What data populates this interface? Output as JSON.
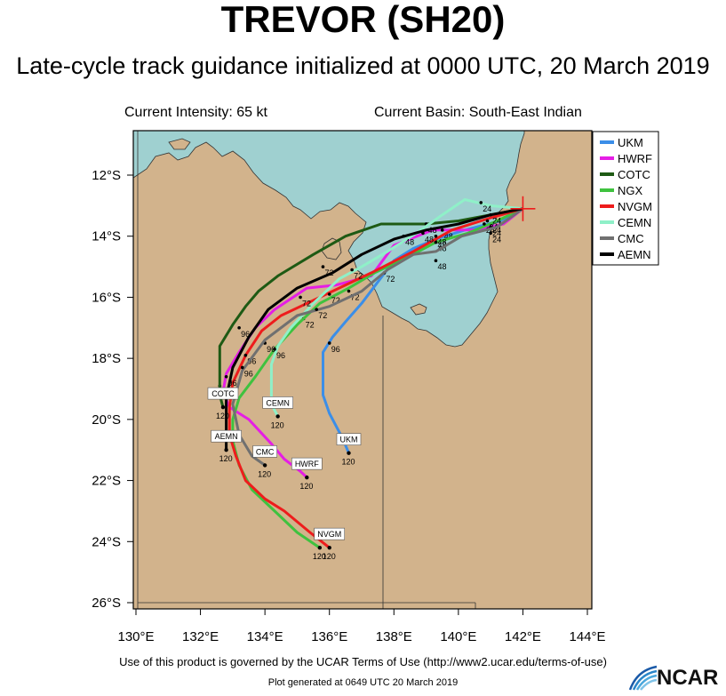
{
  "header": {
    "title": "TREVOR (SH20)",
    "subtitle": "Late-cycle track guidance initialized at 0000 UTC, 20 March 2019",
    "intensity": "Current Intensity: 65 kt",
    "basin": "Current Basin: South-East Indian"
  },
  "footer": {
    "terms": "Use of this product is governed by the UCAR Terms of Use (http://www2.ucar.edu/terms-of-use)",
    "generated": "Plot generated at 0649 UTC   20 March 2019",
    "logo": "NCAR"
  },
  "colors": {
    "ocean": "#9fd0d0",
    "land": "#d2b38c",
    "UKM": "#3b8ee8",
    "HWRF": "#e51ee5",
    "COTC": "#1e5a14",
    "NGX": "#3fc23f",
    "NVGM": "#ee1c1c",
    "CEMN": "#8ff0c8",
    "CMC": "#707070",
    "AEMN": "#000000"
  },
  "chart_data": {
    "type": "map",
    "x_axis": {
      "range": [
        130,
        145
      ],
      "ticks": [
        130,
        132,
        134,
        136,
        138,
        140,
        142,
        144
      ],
      "tick_labels": [
        "130°E",
        "132°E",
        "134°E",
        "136°E",
        "138°E",
        "140°E",
        "142°E",
        "144°E"
      ]
    },
    "y_axis": {
      "range": [
        -26.2,
        -10.5
      ],
      "ticks": [
        -12,
        -14,
        -16,
        -18,
        -20,
        -22,
        -24,
        -26
      ],
      "tick_labels": [
        "12°S",
        "14°S",
        "16°S",
        "18°S",
        "20°S",
        "22°S",
        "24°S",
        "26°S"
      ]
    },
    "current_position": {
      "lon": 142.0,
      "lat": -13.1
    },
    "legend": {
      "position": "top-right",
      "entries": [
        "UKM",
        "HWRF",
        "COTC",
        "NGX",
        "NVGM",
        "CEMN",
        "CMC",
        "AEMN"
      ]
    },
    "series": [
      {
        "name": "UKM",
        "end_label": "UKM",
        "end_hour": "120",
        "points": [
          [
            142.0,
            -13.1
          ],
          [
            141.3,
            -13.5
          ],
          [
            140.2,
            -13.8
          ],
          [
            139.3,
            -14.1
          ],
          [
            138.6,
            -14.4
          ],
          [
            138.0,
            -14.8
          ],
          [
            137.5,
            -15.5
          ],
          [
            137.0,
            -16.2
          ],
          [
            136.5,
            -16.8
          ],
          [
            136.1,
            -17.3
          ],
          [
            135.8,
            -17.8
          ],
          [
            135.8,
            -18.3
          ],
          [
            135.8,
            -19.2
          ],
          [
            136.0,
            -19.8
          ],
          [
            136.4,
            -20.6
          ],
          [
            136.6,
            -21.1
          ]
        ],
        "hours": [
          {
            "h": "24",
            "lon": 141.0,
            "lat": -13.6
          },
          {
            "h": "48",
            "lon": 139.3,
            "lat": -14.1
          },
          {
            "h": "72",
            "lon": 137.7,
            "lat": -15.2
          },
          {
            "h": "96",
            "lon": 136.0,
            "lat": -17.5
          }
        ]
      },
      {
        "name": "HWRF",
        "end_label": "HWRF",
        "end_hour": "120",
        "points": [
          [
            142.0,
            -13.1
          ],
          [
            141.4,
            -13.6
          ],
          [
            140.5,
            -13.8
          ],
          [
            139.2,
            -13.8
          ],
          [
            138.0,
            -14.3
          ],
          [
            137.3,
            -15.3
          ],
          [
            136.2,
            -15.6
          ],
          [
            135.3,
            -15.7
          ],
          [
            134.3,
            -16.4
          ],
          [
            133.7,
            -17.0
          ],
          [
            133.2,
            -17.8
          ],
          [
            132.8,
            -18.5
          ],
          [
            132.7,
            -19.1
          ],
          [
            132.9,
            -19.6
          ],
          [
            133.5,
            -20.0
          ],
          [
            134.2,
            -20.8
          ],
          [
            134.6,
            -21.3
          ],
          [
            135.1,
            -21.7
          ],
          [
            135.3,
            -21.9
          ]
        ],
        "hours": [
          {
            "h": "24",
            "lon": 141.0,
            "lat": -13.7
          },
          {
            "h": "48",
            "lon": 139.5,
            "lat": -13.8
          },
          {
            "h": "72",
            "lon": 135.2,
            "lat": -16.7
          },
          {
            "h": "96",
            "lon": 132.6,
            "lat": -18.9
          }
        ]
      },
      {
        "name": "COTC",
        "end_label": "COTC",
        "end_hour": "120",
        "points": [
          [
            142.0,
            -13.1
          ],
          [
            141.0,
            -13.3
          ],
          [
            140.0,
            -13.5
          ],
          [
            139.0,
            -13.6
          ],
          [
            137.6,
            -13.6
          ],
          [
            136.5,
            -14.0
          ],
          [
            135.5,
            -14.6
          ],
          [
            134.4,
            -15.3
          ],
          [
            133.8,
            -15.8
          ],
          [
            133.4,
            -16.3
          ],
          [
            133.0,
            -16.9
          ],
          [
            132.6,
            -17.6
          ],
          [
            132.6,
            -18.2
          ],
          [
            132.6,
            -18.7
          ],
          [
            132.6,
            -19.2
          ],
          [
            132.7,
            -19.6
          ]
        ],
        "hours": [
          {
            "h": "24",
            "lon": 141.0,
            "lat": -13.3
          },
          {
            "h": "48",
            "lon": 139.0,
            "lat": -13.6
          },
          {
            "h": "72",
            "lon": 135.8,
            "lat": -15.0
          },
          {
            "h": "96",
            "lon": 133.2,
            "lat": -17.0
          }
        ]
      },
      {
        "name": "NGX",
        "end_label": "",
        "end_hour": "120",
        "points": [
          [
            142.0,
            -13.1
          ],
          [
            141.2,
            -13.5
          ],
          [
            140.3,
            -13.9
          ],
          [
            139.3,
            -14.2
          ],
          [
            138.4,
            -14.7
          ],
          [
            137.4,
            -15.2
          ],
          [
            136.6,
            -15.7
          ],
          [
            135.7,
            -16.2
          ],
          [
            135.0,
            -16.9
          ],
          [
            134.3,
            -17.7
          ],
          [
            133.7,
            -18.6
          ],
          [
            133.2,
            -19.3
          ],
          [
            133.0,
            -20.0
          ],
          [
            133.0,
            -20.7
          ],
          [
            133.2,
            -21.5
          ],
          [
            133.6,
            -22.3
          ],
          [
            134.3,
            -23.0
          ],
          [
            135.0,
            -23.7
          ],
          [
            135.7,
            -24.2
          ]
        ],
        "hours": [
          {
            "h": "24",
            "lon": 140.8,
            "lat": -13.6
          },
          {
            "h": "48",
            "lon": 139.3,
            "lat": -14.2
          },
          {
            "h": "72",
            "lon": 136.6,
            "lat": -15.8
          },
          {
            "h": "96",
            "lon": 134.0,
            "lat": -17.5
          }
        ]
      },
      {
        "name": "NVGM",
        "end_label": "NVGM",
        "end_hour": "120",
        "points": [
          [
            142.0,
            -13.1
          ],
          [
            141.0,
            -13.4
          ],
          [
            139.8,
            -13.8
          ],
          [
            138.6,
            -14.5
          ],
          [
            137.3,
            -15.2
          ],
          [
            136.3,
            -15.7
          ],
          [
            135.3,
            -16.2
          ],
          [
            134.5,
            -16.6
          ],
          [
            133.9,
            -17.1
          ],
          [
            133.4,
            -17.9
          ],
          [
            133.0,
            -18.8
          ],
          [
            132.9,
            -19.6
          ],
          [
            132.9,
            -20.5
          ],
          [
            133.1,
            -21.2
          ],
          [
            133.4,
            -22.0
          ],
          [
            134.0,
            -22.6
          ],
          [
            134.6,
            -23.0
          ],
          [
            135.4,
            -23.7
          ],
          [
            136.0,
            -24.2
          ]
        ],
        "hours": [
          {
            "h": "24",
            "lon": 140.9,
            "lat": -13.5
          },
          {
            "h": "48",
            "lon": 139.3,
            "lat": -14.0
          },
          {
            "h": "72",
            "lon": 136.0,
            "lat": -15.9
          },
          {
            "h": "96",
            "lon": 133.4,
            "lat": -17.9
          }
        ]
      },
      {
        "name": "CEMN",
        "end_label": "CEMN",
        "end_hour": "120",
        "points": [
          [
            142.0,
            -13.1
          ],
          [
            141.0,
            -13.0
          ],
          [
            140.2,
            -12.8
          ],
          [
            139.5,
            -13.3
          ],
          [
            138.7,
            -13.9
          ],
          [
            137.8,
            -14.5
          ],
          [
            137.0,
            -15.0
          ],
          [
            136.3,
            -15.4
          ],
          [
            135.5,
            -16.2
          ],
          [
            134.8,
            -17.0
          ],
          [
            134.4,
            -17.6
          ],
          [
            134.2,
            -18.2
          ],
          [
            134.2,
            -18.9
          ],
          [
            134.2,
            -19.5
          ],
          [
            134.4,
            -19.9
          ]
        ],
        "hours": [
          {
            "h": "24",
            "lon": 140.7,
            "lat": -12.9
          },
          {
            "h": "48",
            "lon": 138.3,
            "lat": -14.0
          },
          {
            "h": "72",
            "lon": 136.7,
            "lat": -15.1
          },
          {
            "h": "96",
            "lon": 134.3,
            "lat": -17.7
          }
        ]
      },
      {
        "name": "CMC",
        "end_label": "CMC",
        "end_hour": "120",
        "points": [
          [
            142.0,
            -13.1
          ],
          [
            141.2,
            -13.7
          ],
          [
            140.1,
            -14.0
          ],
          [
            139.3,
            -14.5
          ],
          [
            138.6,
            -14.6
          ],
          [
            137.8,
            -15.1
          ],
          [
            137.0,
            -15.8
          ],
          [
            136.0,
            -16.3
          ],
          [
            135.0,
            -16.6
          ],
          [
            134.0,
            -17.4
          ],
          [
            133.3,
            -18.4
          ],
          [
            133.0,
            -19.5
          ],
          [
            133.2,
            -20.5
          ],
          [
            133.6,
            -21.2
          ],
          [
            134.0,
            -21.5
          ]
        ],
        "hours": [
          {
            "h": "24",
            "lon": 141.0,
            "lat": -13.9
          },
          {
            "h": "48",
            "lon": 139.3,
            "lat": -14.8
          },
          {
            "h": "72",
            "lon": 135.6,
            "lat": -16.4
          },
          {
            "h": "96",
            "lon": 133.3,
            "lat": -18.3
          }
        ]
      },
      {
        "name": "AEMN",
        "end_label": "AEMN",
        "end_hour": "120",
        "points": [
          [
            142.0,
            -13.1
          ],
          [
            141.0,
            -13.3
          ],
          [
            140.0,
            -13.6
          ],
          [
            139.0,
            -13.8
          ],
          [
            138.0,
            -14.1
          ],
          [
            137.0,
            -14.6
          ],
          [
            136.1,
            -15.2
          ],
          [
            135.0,
            -15.7
          ],
          [
            134.1,
            -16.4
          ],
          [
            133.5,
            -17.3
          ],
          [
            133.0,
            -18.3
          ],
          [
            132.8,
            -19.3
          ],
          [
            132.8,
            -20.2
          ],
          [
            132.8,
            -21.0
          ]
        ],
        "hours": [
          {
            "h": "24",
            "lon": 141.0,
            "lat": -13.3
          },
          {
            "h": "48",
            "lon": 138.9,
            "lat": -13.9
          },
          {
            "h": "72",
            "lon": 135.1,
            "lat": -16.0
          },
          {
            "h": "96",
            "lon": 132.8,
            "lat": -18.6
          }
        ]
      }
    ]
  }
}
